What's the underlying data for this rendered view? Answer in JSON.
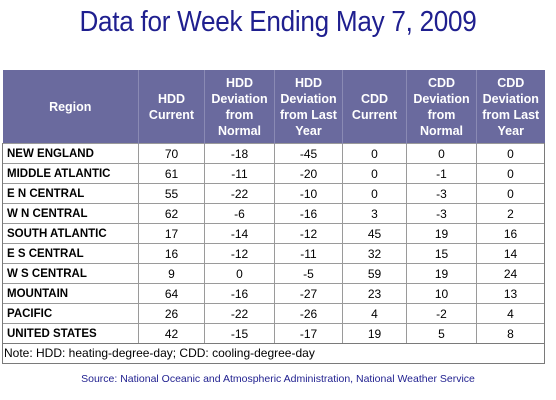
{
  "title": "Data for Week Ending May 7, 2009",
  "table": {
    "headers": [
      "Region",
      "HDD Current",
      "HDD Deviation from Normal",
      "HDD Deviation from Last Year",
      "CDD Current",
      "CDD Deviation from Normal",
      "CDD Deviation from Last Year"
    ],
    "rows": [
      [
        "NEW ENGLAND",
        "70",
        "-18",
        "-45",
        "0",
        "0",
        "0"
      ],
      [
        "MIDDLE ATLANTIC",
        "61",
        "-11",
        "-20",
        "0",
        "-1",
        "0"
      ],
      [
        "E N CENTRAL",
        "55",
        "-22",
        "-10",
        "0",
        "-3",
        "0"
      ],
      [
        "W N CENTRAL",
        "62",
        "-6",
        "-16",
        "3",
        "-3",
        "2"
      ],
      [
        "SOUTH ATLANTIC",
        "17",
        "-14",
        "-12",
        "45",
        "19",
        "16"
      ],
      [
        "E S CENTRAL",
        "16",
        "-12",
        "-11",
        "32",
        "15",
        "14"
      ],
      [
        "W S CENTRAL",
        "9",
        "0",
        "-5",
        "59",
        "19",
        "24"
      ],
      [
        "MOUNTAIN",
        "64",
        "-16",
        "-27",
        "23",
        "10",
        "13"
      ],
      [
        "PACIFIC",
        "26",
        "-22",
        "-26",
        "4",
        "-2",
        "4"
      ],
      [
        "UNITED STATES",
        "42",
        "-15",
        "-17",
        "19",
        "5",
        "8"
      ]
    ]
  },
  "note": "Note: HDD: heating-degree-day; CDD: cooling-degree-day",
  "source": "Source:  National Oceanic and Atmospheric Administration, National Weather Service",
  "colors": {
    "title": "#1f1f8f",
    "header_background": "#6a6a9e",
    "header_text": "#ffffff",
    "source": "#1f1f8f"
  }
}
